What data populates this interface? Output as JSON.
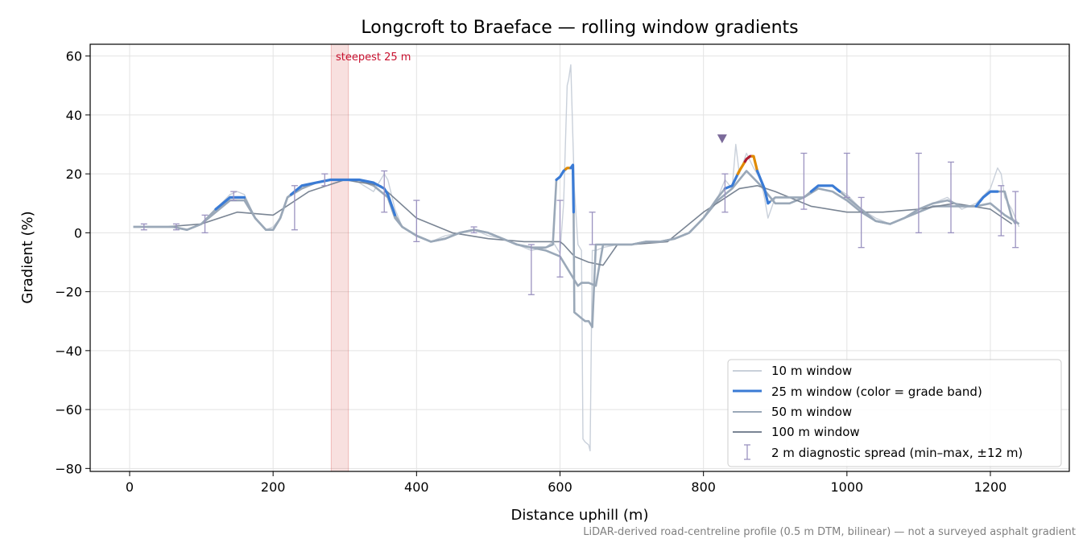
{
  "chart_data": {
    "type": "line",
    "title": "Longcroft to Braeface — rolling window gradients",
    "xlabel": "Distance uphill (m)",
    "ylabel": "Gradient (%)",
    "xlim": [
      -55,
      1310
    ],
    "ylim": [
      -81,
      64
    ],
    "xticks": [
      0,
      200,
      400,
      600,
      800,
      1000,
      1200
    ],
    "yticks": [
      -80,
      -60,
      -40,
      -20,
      0,
      20,
      40,
      60
    ],
    "ytick_labels": [
      "−80",
      "−60",
      "−40",
      "−20",
      "0",
      "20",
      "40",
      "60"
    ],
    "grid": true,
    "legend_position": "lower right",
    "footnote": "LiDAR-derived road-centreline profile (0.5 m DTM, bilinear) — not a surveyed asphalt gradient",
    "highlight": {
      "x_start": 281,
      "x_end": 305,
      "label": "steepest 25 m",
      "color": "#d9534f"
    },
    "peak_marker": {
      "x": 826,
      "y": 32,
      "color": "#7b6a9a"
    },
    "grade_colors": {
      "base": "#3a7bd5",
      "steep": "#e08a00",
      "very_steep": "#b01c2e"
    },
    "series": [
      {
        "name": "10 m window",
        "color": "#c9d0da",
        "x": [
          5,
          20,
          40,
          60,
          80,
          100,
          120,
          140,
          150,
          160,
          175,
          190,
          200,
          210,
          220,
          240,
          260,
          280,
          300,
          320,
          340,
          355,
          360,
          370,
          380,
          400,
          420,
          440,
          460,
          480,
          500,
          520,
          540,
          560,
          580,
          590,
          600,
          605,
          610,
          612,
          615,
          620,
          625,
          630,
          632,
          635,
          640,
          642,
          645,
          650,
          660,
          680,
          700,
          720,
          740,
          760,
          780,
          800,
          820,
          830,
          840,
          845,
          850,
          860,
          870,
          880,
          885,
          890,
          900,
          920,
          940,
          960,
          980,
          1000,
          1020,
          1040,
          1060,
          1080,
          1100,
          1120,
          1140,
          1160,
          1180,
          1200,
          1210,
          1215,
          1220,
          1230,
          1240
        ],
        "y": [
          2,
          2,
          2,
          2,
          1,
          3,
          8,
          13,
          14,
          13,
          5,
          1,
          2,
          5,
          12,
          16,
          17,
          18,
          18,
          17,
          14,
          20,
          18,
          8,
          2,
          -1,
          -3,
          -1,
          0,
          1,
          -1,
          -2,
          -4,
          -6,
          -5,
          -3,
          -7,
          10,
          50,
          52,
          57,
          15,
          -4,
          -6,
          -70,
          -71,
          -72,
          -74,
          -6,
          -6,
          -5,
          -4,
          -4,
          -3,
          -3,
          -2,
          0,
          5,
          12,
          18,
          15,
          30,
          20,
          27,
          22,
          18,
          12,
          5,
          12,
          12,
          12,
          16,
          16,
          13,
          8,
          5,
          3,
          5,
          8,
          10,
          12,
          8,
          10,
          15,
          22,
          20,
          12,
          8,
          2
        ]
      },
      {
        "name": "25 m window (color = grade band)",
        "color": "#3a7bd5",
        "x": [
          5,
          20,
          40,
          60,
          80,
          100,
          120,
          140,
          150,
          160,
          175,
          190,
          200,
          210,
          220,
          240,
          260,
          280,
          300,
          320,
          340,
          355,
          360,
          370,
          380,
          400,
          420,
          440,
          460,
          480,
          500,
          520,
          540,
          560,
          580,
          590,
          595,
          600,
          605,
          610,
          615,
          618,
          619,
          620,
          625,
          630,
          635,
          640,
          645,
          650,
          660,
          680,
          700,
          720,
          740,
          760,
          780,
          800,
          820,
          830,
          840,
          850,
          860,
          865,
          870,
          875,
          880,
          885,
          890,
          900,
          920,
          940,
          960,
          980,
          1000,
          1020,
          1040,
          1060,
          1080,
          1100,
          1120,
          1140,
          1160,
          1180,
          1190,
          1200,
          1210,
          1220,
          1230,
          1235
        ],
        "y": [
          2,
          2,
          2,
          2,
          1,
          3,
          8,
          12,
          12,
          12,
          5,
          1,
          1,
          5,
          12,
          16,
          17,
          18,
          18,
          18,
          17,
          15,
          13,
          6,
          2,
          -1,
          -3,
          -2,
          0,
          1,
          0,
          -2,
          -4,
          -5,
          -5,
          -4,
          18,
          19,
          21,
          22,
          22,
          23,
          7,
          -27,
          -28,
          -29,
          -30,
          -30,
          -32,
          -4,
          -4,
          -4,
          -4,
          -3,
          -3,
          -2,
          0,
          5,
          12,
          15,
          16,
          21,
          25,
          26,
          26,
          21,
          18,
          15,
          10,
          12,
          12,
          12,
          16,
          16,
          12,
          8,
          4,
          3,
          5,
          8,
          10,
          11,
          9,
          9,
          12,
          14,
          14,
          14,
          5,
          3
        ],
        "segments": [
          {
            "band": "base",
            "x_start": 120,
            "x_end": 160
          },
          {
            "band": "base",
            "x_start": 225,
            "x_end": 370
          },
          {
            "band": "base",
            "x_start": 595,
            "x_end": 608
          },
          {
            "band": "steep",
            "x_start": 608,
            "x_end": 615
          },
          {
            "band": "base",
            "x_start": 615,
            "x_end": 619
          },
          {
            "band": "base",
            "x_start": 830,
            "x_end": 848
          },
          {
            "band": "steep",
            "x_start": 848,
            "x_end": 858
          },
          {
            "band": "very_steep",
            "x_start": 858,
            "x_end": 868
          },
          {
            "band": "steep",
            "x_start": 868,
            "x_end": 875
          },
          {
            "band": "base",
            "x_start": 875,
            "x_end": 892
          },
          {
            "band": "base",
            "x_start": 950,
            "x_end": 990
          },
          {
            "band": "base",
            "x_start": 1180,
            "x_end": 1210
          }
        ]
      },
      {
        "name": "50 m window",
        "color": "#9aa8b8",
        "x": [
          5,
          20,
          40,
          60,
          80,
          100,
          120,
          140,
          150,
          160,
          175,
          190,
          200,
          210,
          220,
          240,
          260,
          280,
          300,
          320,
          340,
          360,
          370,
          380,
          400,
          420,
          440,
          460,
          480,
          500,
          520,
          540,
          560,
          580,
          600,
          610,
          620,
          625,
          630,
          640,
          650,
          660,
          680,
          700,
          720,
          740,
          760,
          780,
          800,
          820,
          840,
          860,
          880,
          900,
          920,
          940,
          960,
          980,
          1000,
          1020,
          1040,
          1060,
          1080,
          1100,
          1120,
          1140,
          1160,
          1180,
          1200,
          1220,
          1240
        ],
        "y": [
          2,
          2,
          2,
          2,
          1,
          3,
          7,
          11,
          11,
          11,
          5,
          1,
          1,
          5,
          12,
          15,
          17,
          18,
          18,
          18,
          16,
          12,
          5,
          2,
          -1,
          -3,
          -2,
          0,
          1,
          0,
          -2,
          -4,
          -5,
          -6,
          -8,
          -12,
          -16,
          -18,
          -17,
          -17,
          -18,
          -4,
          -4,
          -4,
          -3,
          -3,
          -2,
          0,
          5,
          11,
          15,
          21,
          16,
          10,
          10,
          12,
          15,
          14,
          11,
          7,
          4,
          3,
          5,
          7,
          9,
          9,
          9,
          9,
          10,
          6,
          3
        ]
      },
      {
        "name": "100 m window",
        "color": "#7a8594",
        "x": [
          5,
          50,
          100,
          150,
          200,
          250,
          300,
          350,
          400,
          450,
          500,
          550,
          600,
          605,
          620,
          640,
          660,
          680,
          700,
          750,
          800,
          850,
          875,
          900,
          950,
          1000,
          1050,
          1100,
          1150,
          1200,
          1230
        ],
        "y": [
          2,
          2,
          3,
          7,
          6,
          14,
          18,
          16,
          5,
          0,
          -2,
          -3,
          -3,
          -4,
          -8,
          -10,
          -11,
          -4,
          -4,
          -3,
          7,
          15,
          16,
          14,
          9,
          7,
          7,
          8,
          10,
          8,
          3
        ]
      },
      {
        "name": "2 m diagnostic spread (min–max, ±12 m)",
        "color": "#9b93c0",
        "points": [
          {
            "x": 20,
            "min": 1,
            "max": 3
          },
          {
            "x": 65,
            "min": 1,
            "max": 3
          },
          {
            "x": 105,
            "min": 0,
            "max": 6
          },
          {
            "x": 145,
            "min": 11,
            "max": 14
          },
          {
            "x": 230,
            "min": 1,
            "max": 16
          },
          {
            "x": 272,
            "min": 16,
            "max": 20
          },
          {
            "x": 355,
            "min": 7,
            "max": 21
          },
          {
            "x": 400,
            "min": -3,
            "max": 11
          },
          {
            "x": 480,
            "min": 0,
            "max": 2
          },
          {
            "x": 560,
            "min": -21,
            "max": -4
          },
          {
            "x": 600,
            "min": -15,
            "max": 11
          },
          {
            "x": 645,
            "min": -4,
            "max": 7
          },
          {
            "x": 830,
            "min": 7,
            "max": 20
          },
          {
            "x": 940,
            "min": 8,
            "max": 27
          },
          {
            "x": 1000,
            "min": 12,
            "max": 27
          },
          {
            "x": 1020,
            "min": -5,
            "max": 12
          },
          {
            "x": 1100,
            "min": 0,
            "max": 27
          },
          {
            "x": 1145,
            "min": 0,
            "max": 24
          },
          {
            "x": 1215,
            "min": -1,
            "max": 16
          },
          {
            "x": 1235,
            "min": -5,
            "max": 14
          }
        ]
      }
    ]
  }
}
